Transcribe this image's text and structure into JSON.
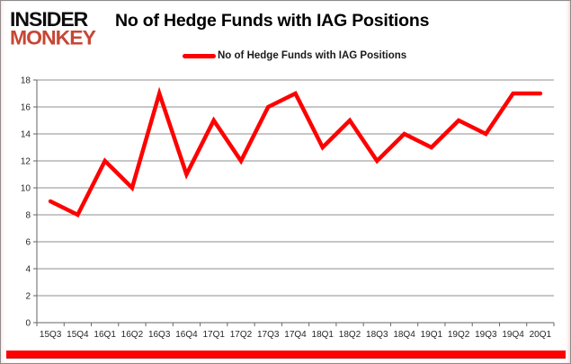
{
  "logo": {
    "line1": "INSIDER",
    "line2": "MONKEY",
    "accent_color": "#c74634"
  },
  "header": {
    "title": "No of Hedge Funds with IAG Positions"
  },
  "legend": {
    "label": "No of Hedge Funds with IAG Positions",
    "swatch_color": "#ff0000"
  },
  "colors": {
    "line": "#ff0000",
    "gridline": "#8f8f8f",
    "axis": "#666666",
    "tick_label": "#262626",
    "bottom_stripe": "#ff0000"
  },
  "chart_data": {
    "type": "line",
    "title": "No of Hedge Funds with IAG Positions",
    "categories": [
      "15Q3",
      "15Q4",
      "16Q1",
      "16Q2",
      "16Q3",
      "16Q4",
      "17Q1",
      "17Q2",
      "17Q3",
      "17Q4",
      "18Q1",
      "18Q2",
      "18Q3",
      "18Q4",
      "19Q1",
      "19Q2",
      "19Q3",
      "19Q4",
      "20Q1"
    ],
    "series": [
      {
        "name": "No of Hedge Funds with IAG Positions",
        "values": [
          9,
          8,
          12,
          10,
          17,
          11,
          15,
          12,
          16,
          17,
          13,
          15,
          12,
          14,
          13,
          15,
          14,
          17,
          17
        ]
      }
    ],
    "xlabel": "",
    "ylabel": "",
    "ylim": [
      0,
      18
    ],
    "ytick_step": 2,
    "grid": true,
    "legend_position": "top-center"
  }
}
